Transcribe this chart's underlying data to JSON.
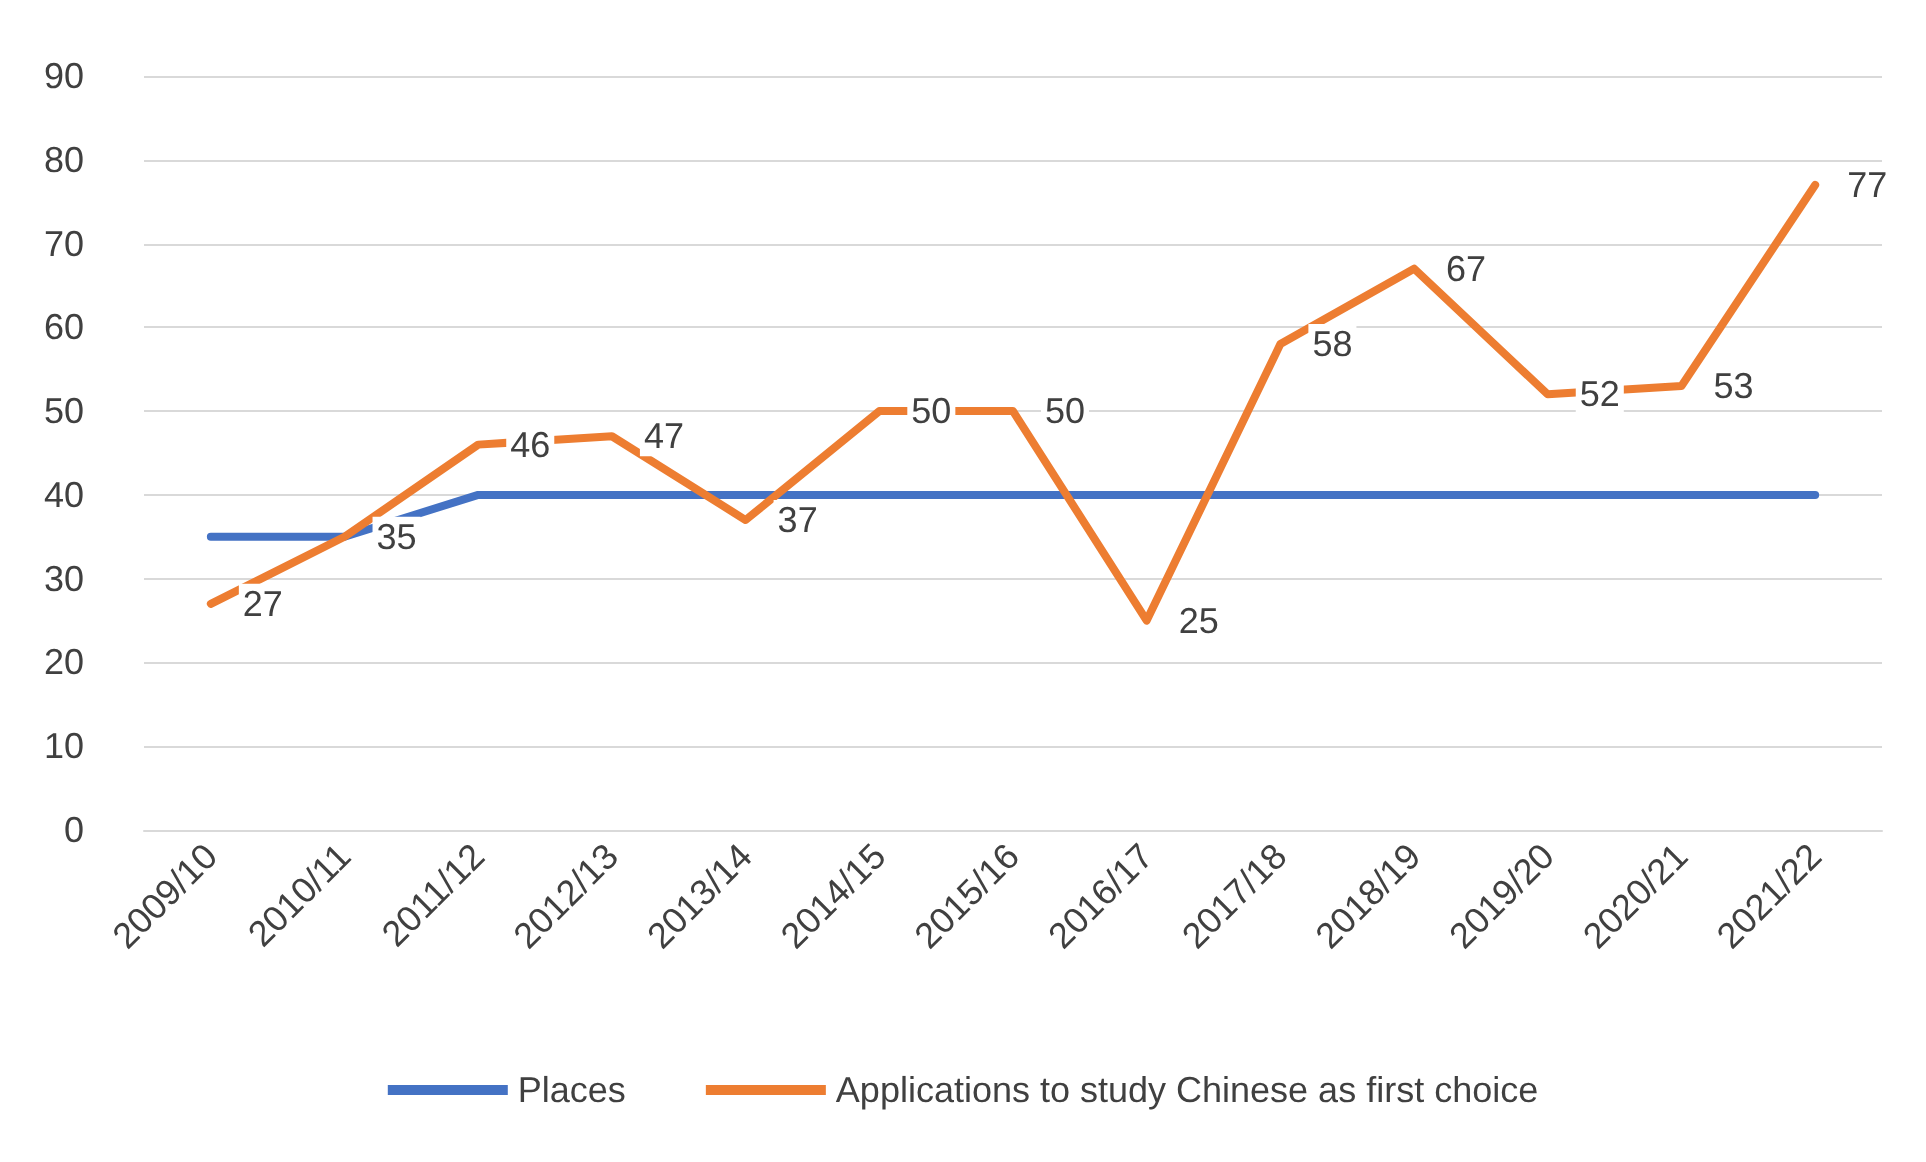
{
  "chart_data": {
    "type": "line",
    "categories": [
      "2009/10",
      "2010/11",
      "2011/12",
      "2012/13",
      "2013/14",
      "2014/15",
      "2015/16",
      "2016/17",
      "2017/18",
      "2018/19",
      "2019/20",
      "2020/21",
      "2021/22"
    ],
    "series": [
      {
        "name": "Places",
        "color": "#4472c4",
        "values": [
          35,
          35,
          40,
          40,
          40,
          40,
          40,
          40,
          40,
          40,
          40,
          40,
          40
        ]
      },
      {
        "name": "Applications to study Chinese as first choice",
        "color": "#ed7d31",
        "values": [
          27,
          35,
          46,
          47,
          37,
          50,
          50,
          25,
          58,
          67,
          52,
          53,
          77
        ],
        "value_labels": [
          "27",
          "35",
          "46",
          "47",
          "37",
          "50",
          "50",
          "25",
          "58",
          "67",
          "52",
          "53",
          "77"
        ]
      }
    ],
    "ylim": [
      0,
      90
    ],
    "yticks": [
      0,
      10,
      20,
      30,
      40,
      50,
      60,
      70,
      80,
      90
    ],
    "grid": "y",
    "legend": "bottom",
    "marker": "none",
    "line_style": "solid"
  }
}
